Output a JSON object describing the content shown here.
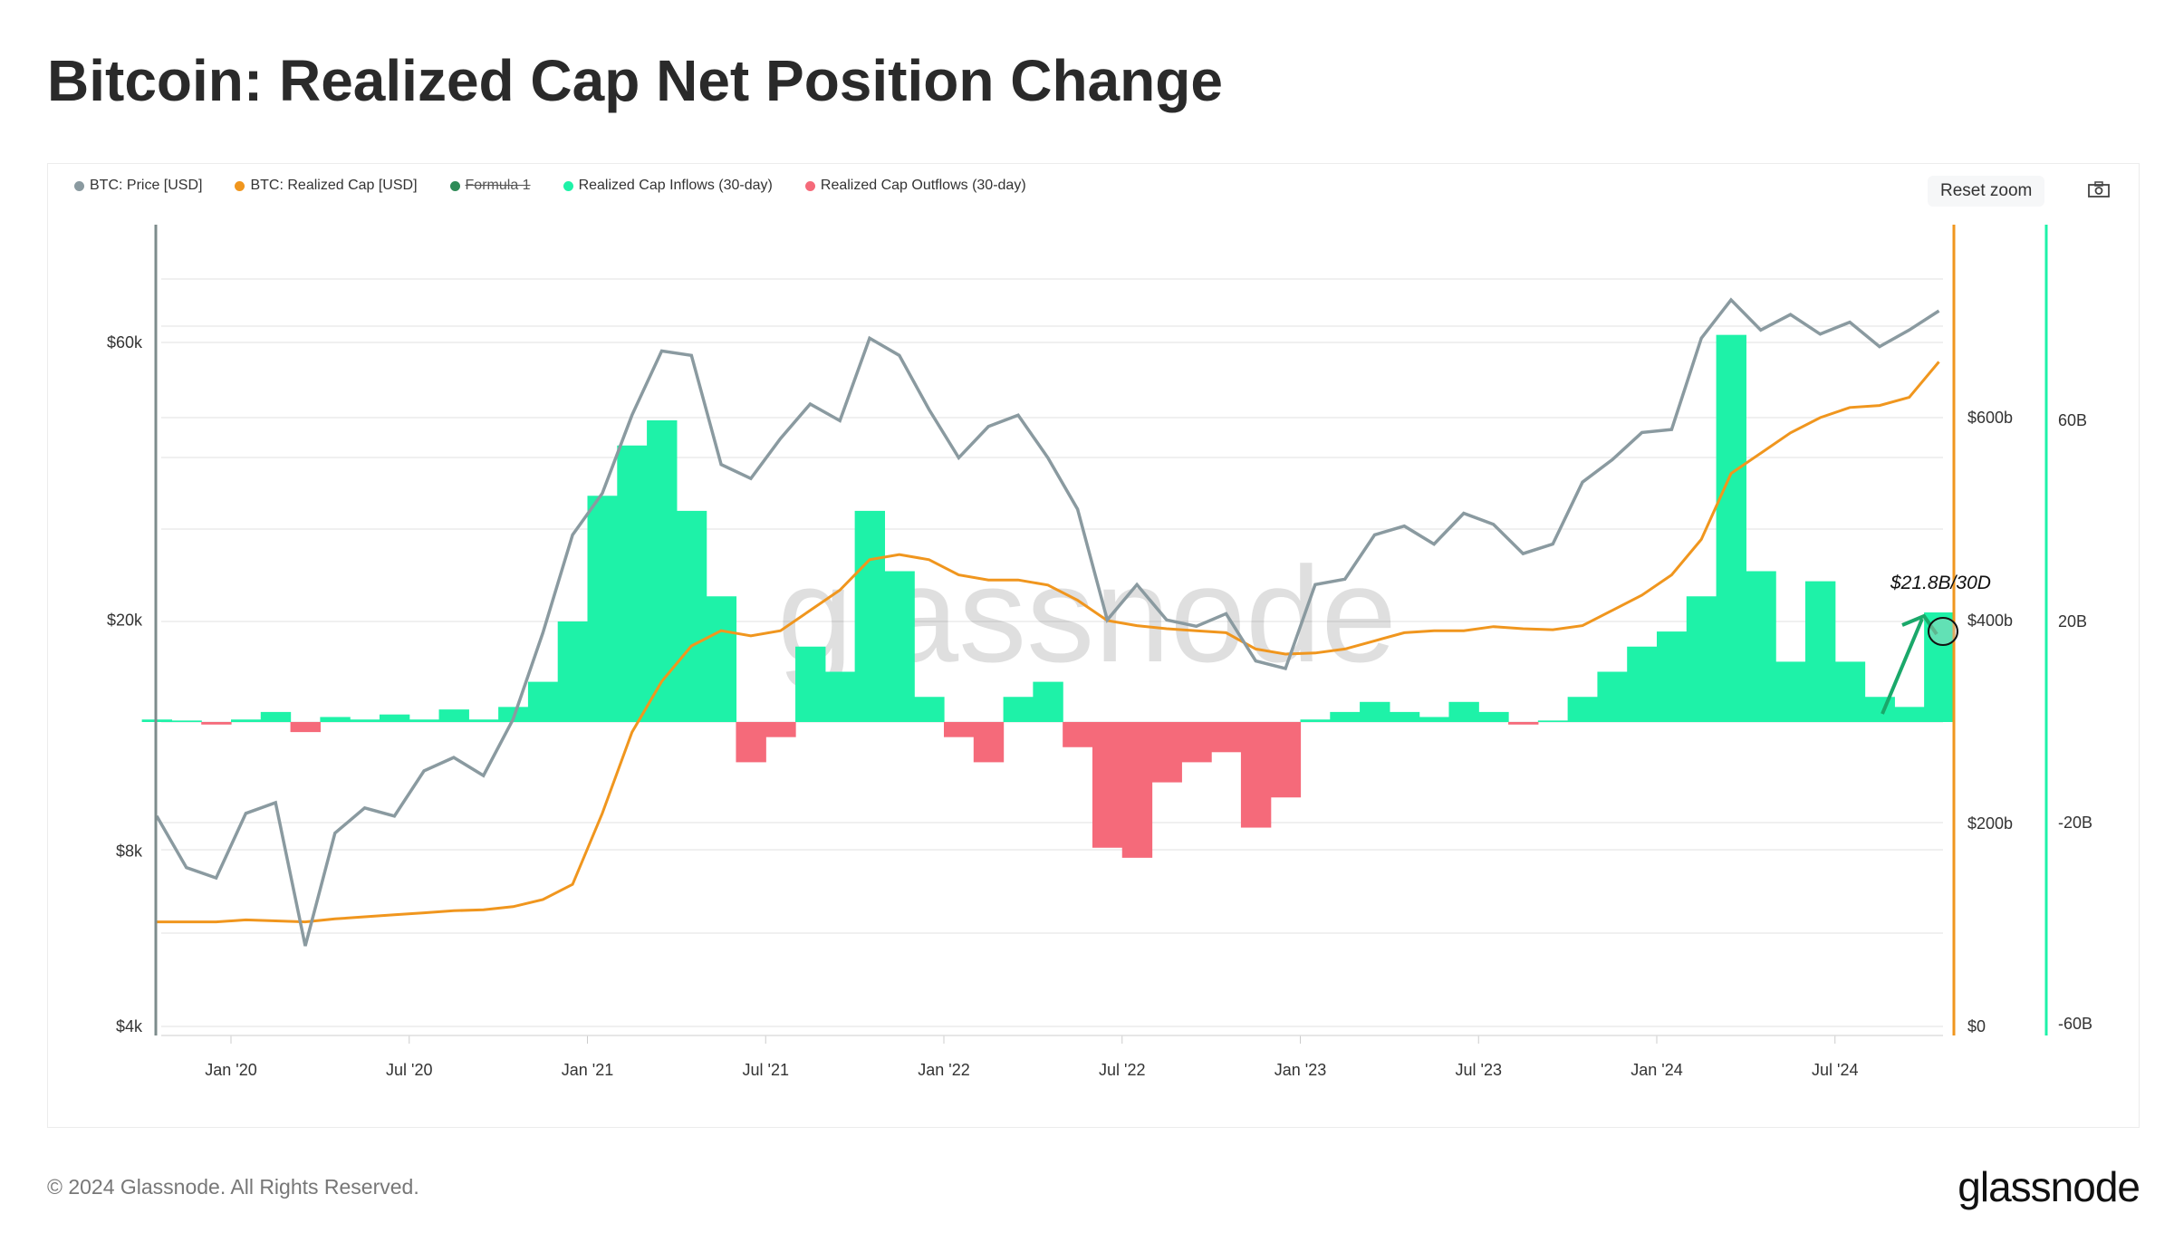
{
  "title": "Bitcoin: Realized Cap Net Position Change",
  "toolbar": {
    "reset_zoom": "Reset zoom",
    "camera_icon": "camera-icon"
  },
  "footer": {
    "copyright": "© 2024 Glassnode. All Rights Reserved.",
    "logo": "glassnode"
  },
  "colors": {
    "price": "#8a9aa0",
    "realized_cap": "#f0961e",
    "formula": "#2e8b57",
    "inflow": "#1ef2a8",
    "outflow": "#f56a7a"
  },
  "chart_data": {
    "type": "line+area",
    "legend": [
      {
        "name": "BTC: Price [USD]",
        "color": "#8a9aa0",
        "hidden": false
      },
      {
        "name": "BTC: Realized Cap [USD]",
        "color": "#f0961e",
        "hidden": false
      },
      {
        "name": "Formula 1",
        "color": "#2e8b57",
        "hidden": true
      },
      {
        "name": "Realized Cap Inflows (30-day)",
        "color": "#1ef2a8",
        "hidden": false
      },
      {
        "name": "Realized Cap Outflows (30-day)",
        "color": "#f56a7a",
        "hidden": false
      }
    ],
    "legend_position": "top-left",
    "x_ticks": [
      "Jan '20",
      "Jul '20",
      "Jan '21",
      "Jul '21",
      "Jan '22",
      "Jul '22",
      "Jan '23",
      "Jul '23",
      "Jan '24",
      "Jul '24"
    ],
    "y_left": {
      "scale": "log",
      "ticks": [
        "$4k",
        "$8k",
        "$20k",
        "$60k"
      ],
      "tick_values": [
        4000,
        8000,
        20000,
        60000
      ]
    },
    "y_right1": {
      "ticks": [
        "$0",
        "$200b",
        "$400b",
        "$600b"
      ],
      "tick_values": [
        0,
        200,
        400,
        600
      ]
    },
    "y_right2": {
      "ticks": [
        "-60B",
        "-20B",
        "20B",
        "60B"
      ],
      "tick_values": [
        -60,
        -20,
        20,
        60
      ]
    },
    "annotation": "$21.8B/30D",
    "x": [
      "2019-10",
      "2019-11",
      "2019-12",
      "2020-01",
      "2020-02",
      "2020-03",
      "2020-04",
      "2020-05",
      "2020-06",
      "2020-07",
      "2020-08",
      "2020-09",
      "2020-10",
      "2020-11",
      "2020-12",
      "2021-01",
      "2021-02",
      "2021-03",
      "2021-04",
      "2021-05",
      "2021-06",
      "2021-07",
      "2021-08",
      "2021-09",
      "2021-10",
      "2021-11",
      "2021-12",
      "2022-01",
      "2022-02",
      "2022-03",
      "2022-04",
      "2022-05",
      "2022-06",
      "2022-07",
      "2022-08",
      "2022-09",
      "2022-10",
      "2022-11",
      "2022-12",
      "2023-01",
      "2023-02",
      "2023-03",
      "2023-04",
      "2023-05",
      "2023-06",
      "2023-07",
      "2023-08",
      "2023-09",
      "2023-10",
      "2023-11",
      "2023-12",
      "2024-01",
      "2024-02",
      "2024-03",
      "2024-04",
      "2024-05",
      "2024-06",
      "2024-07",
      "2024-08",
      "2024-09",
      "2024-10"
    ],
    "series": [
      {
        "name": "BTC: Price [USD]",
        "axis": "left",
        "values": [
          9200,
          7500,
          7200,
          9300,
          9700,
          5500,
          8600,
          9500,
          9200,
          11000,
          11600,
          10800,
          13500,
          19000,
          28000,
          33000,
          45000,
          58000,
          57000,
          37000,
          35000,
          41000,
          47000,
          44000,
          61000,
          57000,
          46000,
          38000,
          43000,
          45000,
          38000,
          31000,
          20000,
          23000,
          20000,
          19500,
          20500,
          17000,
          16500,
          23000,
          23500,
          28000,
          29000,
          27000,
          30500,
          29200,
          26000,
          27000,
          34500,
          37700,
          42000,
          42500,
          61000,
          71000,
          63000,
          67000,
          62000,
          65000,
          59000,
          63000,
          68000
        ]
      },
      {
        "name": "BTC: Realized Cap [USD]",
        "axis": "right1",
        "unit": "billions USD",
        "values": [
          103,
          103,
          103,
          105,
          104,
          103,
          106,
          108,
          110,
          112,
          114,
          115,
          118,
          125,
          140,
          210,
          290,
          340,
          375,
          390,
          385,
          390,
          410,
          430,
          460,
          465,
          460,
          445,
          440,
          440,
          435,
          420,
          400,
          395,
          392,
          390,
          388,
          372,
          367,
          368,
          372,
          380,
          388,
          390,
          390,
          394,
          392,
          391,
          395,
          410,
          425,
          445,
          480,
          545,
          565,
          585,
          600,
          610,
          612,
          620,
          655
        ]
      },
      {
        "name": "Realized Cap Net Position Change (30-day)",
        "axis": "right2",
        "unit": "billions USD",
        "values": [
          0.5,
          0.3,
          -0.5,
          0.5,
          2,
          -2,
          1,
          0.5,
          1.5,
          0.5,
          2.5,
          0.5,
          3,
          8,
          20,
          45,
          55,
          60,
          42,
          25,
          -8,
          -3,
          15,
          10,
          42,
          30,
          5,
          -3,
          -8,
          5,
          8,
          -5,
          -25,
          -27,
          -12,
          -8,
          -6,
          -21,
          -15,
          0.5,
          2,
          4,
          2,
          1,
          4,
          2,
          -0.5,
          0.3,
          5,
          10,
          15,
          18,
          25,
          77,
          30,
          12,
          28,
          12,
          5,
          3,
          21.8
        ]
      }
    ]
  }
}
